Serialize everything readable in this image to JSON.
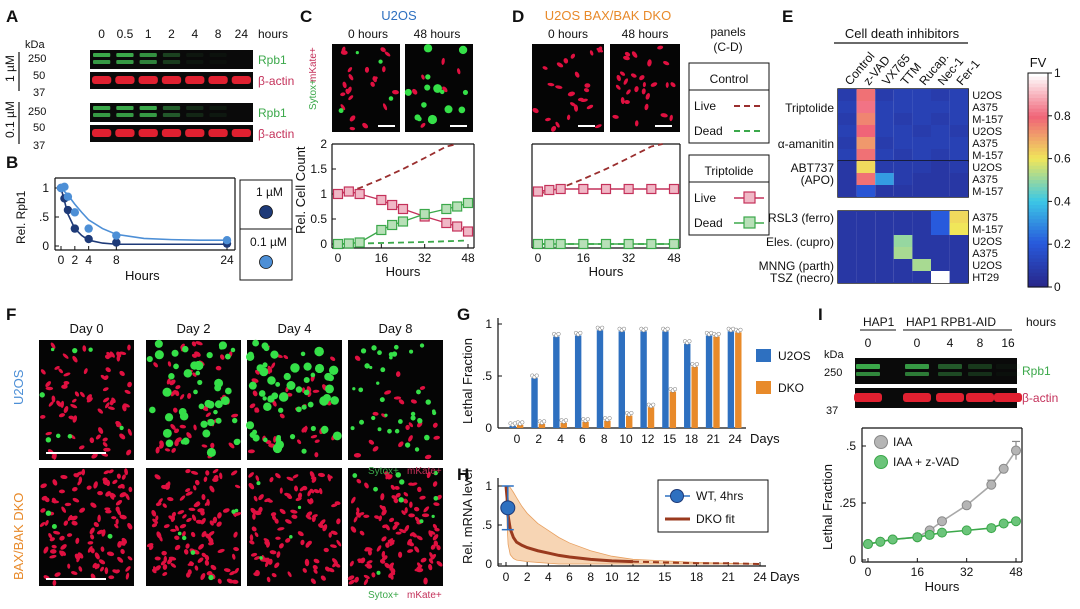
{
  "panel_labels": {
    "a": "A",
    "b": "B",
    "c": "C",
    "d": "D",
    "e": "E",
    "f": "F",
    "g": "G",
    "h": "H",
    "i": "I"
  },
  "colors": {
    "green": "#3ba84a",
    "red": "#c4315a",
    "blue": "#2e70c0",
    "orange": "#e88a2a",
    "navy": "#1e3a78",
    "darkred": "#9a2e2e",
    "grey": "#a0a0a0",
    "lightblue": "#4d8fd6"
  },
  "panelA": {
    "hours_unit": "hours",
    "time_labels": [
      "0",
      "0.5",
      "1",
      "2",
      "4",
      "8",
      "24"
    ],
    "kda": "kDa",
    "marker_top": [
      "250",
      "50",
      "37"
    ],
    "marker_bottom": [
      "250",
      "50",
      "37"
    ],
    "conc": [
      "1 µM",
      "0.1 µM"
    ],
    "band_rpb1": "Rpb1",
    "band_actin": "β-actin",
    "rpb1_band_levels_1uM": [
      1,
      1,
      0.85,
      0.35,
      0.08,
      0.05,
      0
    ],
    "rpb1_band_levels_01uM": [
      1,
      1,
      1,
      0.55,
      0.2,
      0.1,
      0
    ]
  },
  "panelC": {
    "title": "U2OS",
    "t0": "0 hours",
    "t48": "48 hours",
    "side_label_a": "Sytox+",
    "side_label_b": "mKate+"
  },
  "panelD": {
    "title": "U2OS BAX/BAK DKO",
    "t0": "0 hours",
    "t48": "48 hours"
  },
  "legendCD": {
    "header_a": "panels",
    "header_b": "(C-D)",
    "box1_title": "Control",
    "box2_title": "Triptolide",
    "live": "Live",
    "dead": "Dead"
  },
  "panelE": {
    "title": "Cell death inhibitors",
    "columns": [
      "Control",
      "z-VAD",
      "VX765",
      "TTM",
      "Rucap.",
      "Nec-1",
      "Fer-1"
    ],
    "row_groups": [
      {
        "labels": [
          {
            "text": "Triptolide",
            "row": 1
          },
          {
            "text": "α-amanitin",
            "row": 4
          }
        ],
        "cells": [
          "U2OS",
          "A375",
          "M-157",
          "U2OS",
          "A375",
          "M-157"
        ]
      },
      {
        "labels": [
          {
            "text": "ABT737",
            "row": 0
          },
          {
            "text": "(APO)",
            "row": 1
          }
        ],
        "cells": [
          "U2OS",
          "A375",
          "M-157"
        ]
      },
      {
        "labels": [
          {
            "text": "RSL3 (ferro)",
            "row": 0
          },
          {
            "text": "Eles. (cupro)",
            "row": 2
          },
          {
            "text": "MNNG (parth)",
            "row": 4
          },
          {
            "text": "TSZ (necro)",
            "row": 5
          }
        ],
        "cells": [
          "A375",
          "M-157",
          "U2OS",
          "A375",
          "U2OS",
          "HT29"
        ]
      }
    ],
    "values": [
      [
        [
          0.08,
          0.78,
          0.08,
          0.1,
          0.1,
          0.08,
          0.1
        ],
        [
          0.1,
          0.82,
          0.1,
          0.1,
          0.1,
          0.1,
          0.1
        ],
        [
          0.08,
          0.75,
          0.1,
          0.08,
          0.1,
          0.08,
          0.1
        ],
        [
          0.1,
          0.8,
          0.1,
          0.1,
          0.08,
          0.1,
          0.08
        ],
        [
          0.08,
          0.72,
          0.08,
          0.1,
          0.1,
          0.1,
          0.1
        ],
        [
          0.1,
          0.78,
          0.1,
          0.08,
          0.1,
          0.08,
          0.1
        ]
      ],
      [
        [
          0.06,
          0.62,
          0.08,
          0.08,
          0.08,
          0.06,
          0.08
        ],
        [
          0.06,
          0.78,
          0.32,
          0.08,
          0.06,
          0.06,
          0.06
        ],
        [
          0.06,
          0.18,
          0.06,
          0.06,
          0.06,
          0.06,
          0.06
        ]
      ],
      [
        [
          0.06,
          0.06,
          0.06,
          0.06,
          0.06,
          0.2,
          0.62
        ],
        [
          0.06,
          0.06,
          0.06,
          0.06,
          0.06,
          0.2,
          0.6
        ],
        [
          0.06,
          0.06,
          0.06,
          0.5,
          0.06,
          0.06,
          0.06
        ],
        [
          0.06,
          0.06,
          0.06,
          0.52,
          0.06,
          0.06,
          0.06
        ],
        [
          0.06,
          0.06,
          0.06,
          0.06,
          0.52,
          0.06,
          0.06
        ],
        [
          0.06,
          0.06,
          0.06,
          0.06,
          0.06,
          1.0,
          0.06
        ]
      ]
    ],
    "colorbar_title": "FV",
    "colorbar_ticks": [
      "1",
      "0.8",
      "0.6",
      "0.4",
      "0.2",
      "0"
    ]
  },
  "panelF": {
    "days": [
      "Day 0",
      "Day 2",
      "Day 4",
      "Day 8"
    ],
    "row1": "U2OS",
    "row2": "BAX/BAK DKO",
    "stain_a": "Sytox+",
    "stain_b": "mKate+"
  },
  "panelI": {
    "group1": "HAP1",
    "group2": "HAP1 RPB1-AID",
    "times": [
      "0",
      "0",
      "4",
      "8",
      "16"
    ],
    "hours_unit": "hours",
    "kda": "kDa",
    "markers": [
      "250",
      "37"
    ],
    "band_rpb1": "Rpb1",
    "band_actin": "β-actin",
    "rpb1_levels": [
      1,
      0.9,
      0.5,
      0.3,
      0.05
    ]
  },
  "chart_data": [
    {
      "panel": "B",
      "type": "line",
      "xlabel": "Hours",
      "ylabel": "Rel. Rpb1",
      "xlim": [
        0,
        24
      ],
      "ylim": [
        0,
        1
      ],
      "xticks": [
        "0",
        "2",
        "4",
        "8",
        "24"
      ],
      "xtick_values": [
        0,
        2,
        4,
        8,
        24
      ],
      "yticks": [
        "0",
        ".5",
        "1"
      ],
      "ytick_values": [
        0,
        0.5,
        1
      ],
      "legend": [
        "1 µM",
        "0.1 µM"
      ],
      "series": [
        {
          "name": "1 µM",
          "x": [
            0,
            0.5,
            1,
            2,
            4,
            8,
            24
          ],
          "y": [
            1.0,
            0.82,
            0.62,
            0.3,
            0.12,
            0.06,
            0.04
          ],
          "fit_x": [
            0,
            1,
            2,
            3,
            4,
            6,
            8,
            12,
            16,
            20,
            24
          ],
          "fit_y": [
            1.0,
            0.55,
            0.3,
            0.18,
            0.1,
            0.05,
            0.03,
            0.03,
            0.03,
            0.03,
            0.03
          ]
        },
        {
          "name": "0.1 µM",
          "x": [
            0,
            0.5,
            1,
            2,
            4,
            8,
            24
          ],
          "y": [
            1.0,
            1.02,
            0.85,
            0.58,
            0.3,
            0.18,
            0.1
          ],
          "fit_x": [
            0,
            1,
            2,
            3,
            4,
            6,
            8,
            12,
            16,
            20,
            24
          ],
          "fit_y": [
            1.0,
            0.88,
            0.72,
            0.58,
            0.45,
            0.3,
            0.2,
            0.13,
            0.11,
            0.1,
            0.1
          ]
        }
      ]
    },
    {
      "panel": "C",
      "type": "line",
      "xlabel": "Hours",
      "ylabel": "Rel. Cell Count",
      "xlim": [
        0,
        48
      ],
      "ylim": [
        0,
        2
      ],
      "xticks": [
        "0",
        "16",
        "32",
        "48"
      ],
      "xtick_values": [
        0,
        16,
        32,
        48
      ],
      "yticks": [
        "0",
        "0.5",
        "1",
        "1.5",
        "2"
      ],
      "ytick_values": [
        0,
        0.5,
        1,
        1.5,
        2
      ],
      "series": [
        {
          "name": "Control Live",
          "style": "dashed",
          "x": [
            0,
            8,
            16,
            24,
            32,
            40,
            44
          ],
          "y": [
            1,
            1.12,
            1.3,
            1.5,
            1.72,
            1.95,
            2.0
          ]
        },
        {
          "name": "Control Dead",
          "style": "dashed",
          "x": [
            0,
            16,
            32,
            48
          ],
          "y": [
            0,
            0.02,
            0.04,
            0.07
          ]
        },
        {
          "name": "Triptolide Live",
          "x": [
            0,
            4,
            8,
            16,
            20,
            24,
            32,
            40,
            44,
            48
          ],
          "y": [
            1.0,
            1.05,
            1.0,
            0.88,
            0.78,
            0.7,
            0.55,
            0.42,
            0.35,
            0.25
          ]
        },
        {
          "name": "Triptolide Dead",
          "x": [
            0,
            4,
            8,
            16,
            20,
            24,
            32,
            40,
            44,
            48
          ],
          "y": [
            0,
            0.01,
            0.03,
            0.28,
            0.38,
            0.45,
            0.6,
            0.7,
            0.75,
            0.82
          ]
        }
      ]
    },
    {
      "panel": "D",
      "type": "line",
      "xlabel": "Hours",
      "xlim": [
        0,
        48
      ],
      "ylim": [
        0,
        2
      ],
      "xticks": [
        "0",
        "16",
        "32",
        "48"
      ],
      "xtick_values": [
        0,
        16,
        32,
        48
      ],
      "series": [
        {
          "name": "Control Live",
          "style": "dashed",
          "x": [
            0,
            8,
            16,
            24,
            32,
            40,
            44
          ],
          "y": [
            1,
            1.12,
            1.3,
            1.5,
            1.72,
            1.95,
            2.0
          ]
        },
        {
          "name": "Control Dead",
          "style": "dashed",
          "x": [
            0,
            48
          ],
          "y": [
            0,
            0
          ]
        },
        {
          "name": "Triptolide Live",
          "x": [
            0,
            4,
            8,
            16,
            24,
            32,
            40,
            48
          ],
          "y": [
            1.05,
            1.08,
            1.1,
            1.1,
            1.1,
            1.1,
            1.1,
            1.1
          ]
        },
        {
          "name": "Triptolide Dead",
          "x": [
            0,
            4,
            8,
            16,
            24,
            32,
            40,
            48
          ],
          "y": [
            0,
            0,
            0,
            0,
            0,
            0,
            0,
            0
          ]
        }
      ]
    },
    {
      "panel": "G",
      "type": "bar",
      "xlabel": "Days",
      "ylabel": "Lethal Fraction",
      "ylim": [
        0,
        1
      ],
      "categories": [
        "0",
        "2",
        "4",
        "6",
        "8",
        "10",
        "12",
        "15",
        "18",
        "21",
        "24"
      ],
      "yticks": [
        "0",
        ".5",
        "1"
      ],
      "ytick_values": [
        0,
        0.5,
        1
      ],
      "series": [
        {
          "name": "U2OS",
          "values": [
            0.02,
            0.48,
            0.88,
            0.89,
            0.94,
            0.93,
            0.93,
            0.93,
            0.81,
            0.89,
            0.93
          ]
        },
        {
          "name": "DKO",
          "values": [
            0.03,
            0.04,
            0.05,
            0.06,
            0.07,
            0.12,
            0.2,
            0.35,
            0.59,
            0.88,
            0.92
          ]
        }
      ]
    },
    {
      "panel": "H",
      "type": "line",
      "xlabel": "Days",
      "ylabel": "Rel. mRNA level",
      "xlim": [
        0,
        24
      ],
      "ylim": [
        0,
        1
      ],
      "xticks": [
        "0",
        "2",
        "4",
        "6",
        "8",
        "10",
        "12",
        "15",
        "18",
        "21",
        "24"
      ],
      "yticks": [
        "0",
        ".5",
        "1"
      ],
      "ytick_values": [
        0,
        0.5,
        1
      ],
      "series": [
        {
          "name": "WT, 4hrs",
          "type": "scatter",
          "x": [
            0.17
          ],
          "y": [
            0.72
          ],
          "err": [
            0.28
          ]
        },
        {
          "name": "DKO fit",
          "x": [
            0,
            0.1,
            0.2,
            0.4,
            0.7,
            1,
            1.5,
            2,
            3,
            4,
            5,
            6,
            8,
            10,
            12,
            15,
            18,
            21,
            24
          ],
          "y": [
            1.0,
            0.85,
            0.62,
            0.45,
            0.34,
            0.28,
            0.24,
            0.21,
            0.17,
            0.14,
            0.11,
            0.09,
            0.06,
            0.04,
            0.03,
            0.02,
            0.01,
            0.01,
            0.0
          ],
          "upper": [
            1.0,
            1.0,
            1.0,
            0.98,
            0.92,
            0.85,
            0.74,
            0.65,
            0.52,
            0.43,
            0.34,
            0.27,
            0.17,
            0.1,
            0.06,
            0.04,
            0.02,
            0.01,
            0.0
          ],
          "lower": [
            1.0,
            0.5,
            0.25,
            0.12,
            0.07,
            0.05,
            0.04,
            0.03,
            0.02,
            0.01,
            0.0,
            0.0,
            0.0,
            0.0,
            0.0,
            0.0,
            0.0,
            0.0,
            0.0
          ]
        }
      ]
    },
    {
      "panel": "I",
      "type": "line",
      "xlabel": "Hours",
      "ylabel": "Lethal Fraction",
      "xlim": [
        0,
        48
      ],
      "ylim": [
        0,
        0.5
      ],
      "xticks": [
        "0",
        "16",
        "32",
        "48"
      ],
      "xtick_values": [
        0,
        16,
        32,
        48
      ],
      "yticks": [
        "0",
        ".25",
        ".5"
      ],
      "ytick_values": [
        0,
        0.25,
        0.5
      ],
      "series": [
        {
          "name": "IAA",
          "x": [
            0,
            4,
            8,
            16,
            20,
            24,
            32,
            40,
            44,
            48
          ],
          "y": [
            0.07,
            0.08,
            0.09,
            0.1,
            0.13,
            0.17,
            0.24,
            0.33,
            0.4,
            0.48
          ],
          "err": [
            0,
            0,
            0,
            0,
            0,
            0,
            0,
            0.02,
            0,
            0.04
          ]
        },
        {
          "name": "IAA + z-VAD",
          "x": [
            0,
            4,
            8,
            16,
            20,
            24,
            32,
            40,
            44,
            48
          ],
          "y": [
            0.07,
            0.08,
            0.09,
            0.1,
            0.11,
            0.12,
            0.13,
            0.14,
            0.16,
            0.17
          ],
          "err": [
            0,
            0,
            0,
            0,
            0,
            0,
            0,
            0,
            0,
            0
          ]
        }
      ]
    }
  ]
}
